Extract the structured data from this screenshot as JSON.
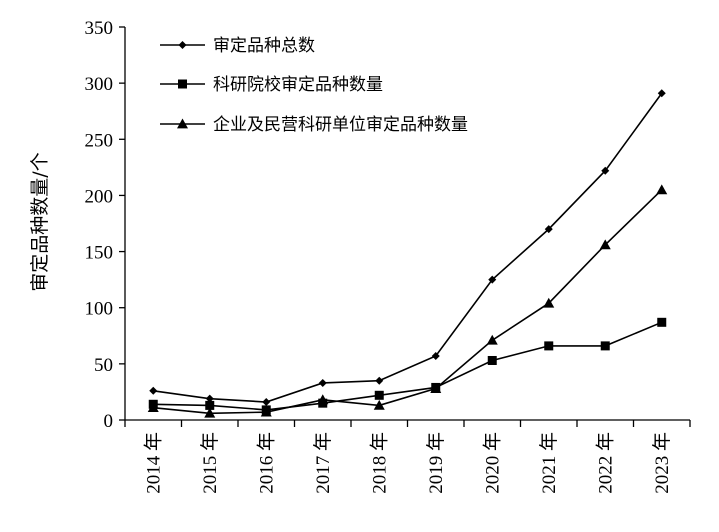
{
  "chart_data": {
    "type": "line",
    "title": "",
    "ylabel": "审定品种数量/个",
    "xlabel": "",
    "categories": [
      "2014 年",
      "2015 年",
      "2016 年",
      "2017 年",
      "2018 年",
      "2019 年",
      "2020 年",
      "2021 年",
      "2022 年",
      "2023 年"
    ],
    "ylim": [
      0,
      350
    ],
    "yticks": [
      0,
      50,
      100,
      150,
      200,
      250,
      300,
      350
    ],
    "grid": false,
    "legend_position": "top-left",
    "series": [
      {
        "name": "审定品种总数",
        "marker": "diamond",
        "color": "#000000",
        "values": [
          26,
          19,
          16,
          33,
          35,
          57,
          125,
          170,
          222,
          291
        ]
      },
      {
        "name": "科研院校审定品种数量",
        "marker": "square",
        "color": "#000000",
        "values": [
          14,
          13,
          9,
          15,
          22,
          29,
          53,
          66,
          66,
          87
        ]
      },
      {
        "name": "企业及民营科研单位审定品种数量",
        "marker": "triangle",
        "color": "#000000",
        "values": [
          11,
          6,
          7,
          18,
          13,
          28,
          71,
          104,
          156,
          205
        ]
      }
    ]
  }
}
